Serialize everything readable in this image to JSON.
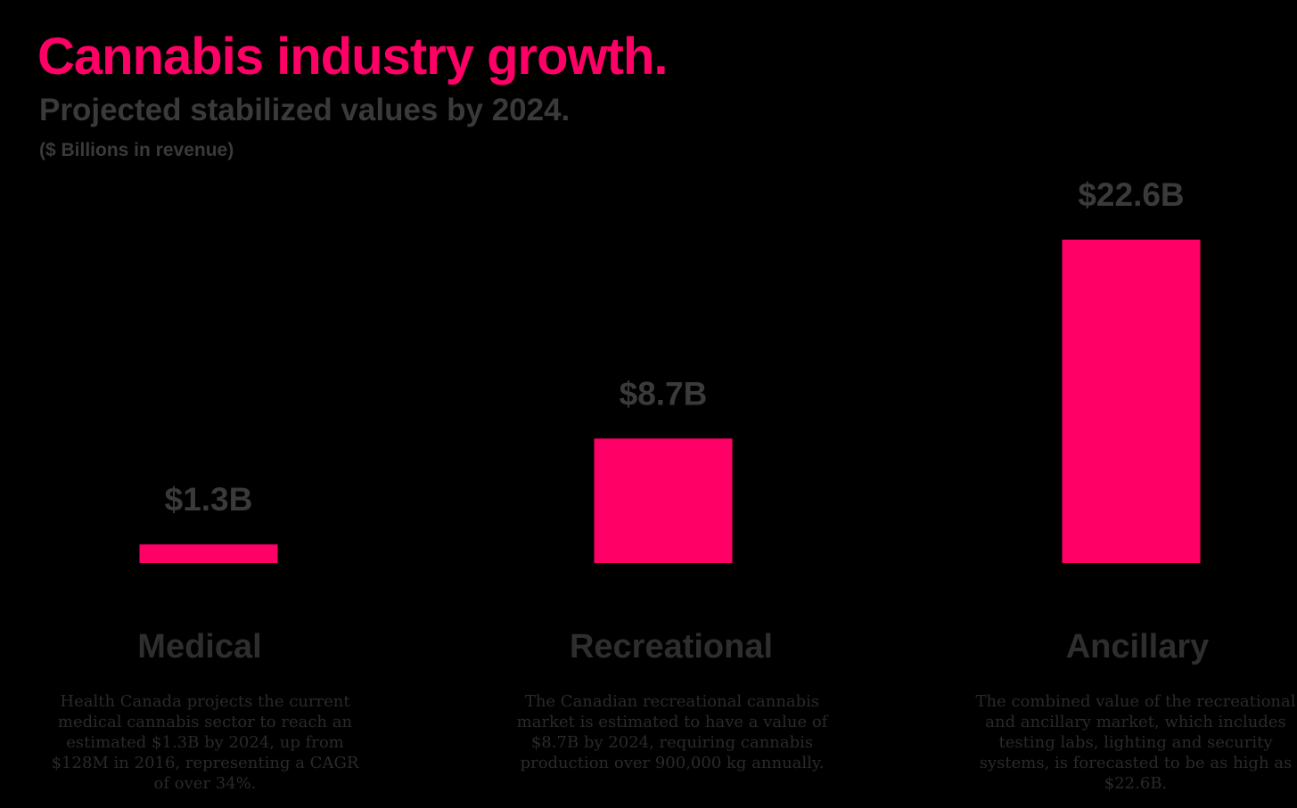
{
  "header": {
    "title": "Cannabis industry growth.",
    "subtitle": "Projected stabilized values by 2024.",
    "unit_note": "($ Billions in revenue)"
  },
  "colors": {
    "background": "#000000",
    "accent": "#ff0066",
    "text_dark": "#3a3a3a"
  },
  "chart_data": {
    "type": "bar",
    "title": "Cannabis industry growth.",
    "subtitle": "Projected stabilized values by 2024.",
    "ylabel": "($ Billions in revenue)",
    "categories": [
      "Medical",
      "Recreational",
      "Ancillary"
    ],
    "values": [
      1.3,
      8.7,
      22.6
    ],
    "data_labels": [
      "$1.3B",
      "$8.7B",
      "$22.6B"
    ],
    "ylim": [
      0,
      22.6
    ],
    "grid": false,
    "bar_color": "#ff0066"
  },
  "descriptions": [
    "Health Canada projects the current medical cannabis sector to reach an estimated $1.3B by 2024, up from $128M in 2016, representing a CAGR of over 34%.",
    "The Canadian recreational cannabis market is estimated to have a value of $8.7B by 2024, requiring cannabis production over 900,000 kg annually.",
    "The combined value of the recreational and ancillary market, which includes testing labs, lighting and security systems, is forecasted to be as high as $22.6B."
  ]
}
